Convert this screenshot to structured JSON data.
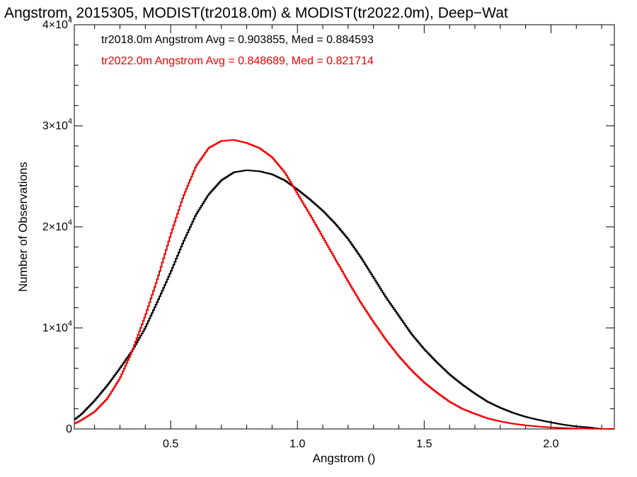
{
  "chart_data": {
    "type": "line",
    "title": "Angstrom, 2015305, MODIST(tr2018.0m) & MODIST(tr2022.0m), Deep−Wat",
    "xlabel": "Angstrom ()",
    "ylabel": "Number of Observations",
    "xlim": [
      0.12,
      2.25
    ],
    "ylim": [
      0,
      40000
    ],
    "grid": false,
    "x_ticks": [
      {
        "value": 0.5,
        "label": "0.5"
      },
      {
        "value": 1.0,
        "label": "1.0"
      },
      {
        "value": 1.5,
        "label": "1.5"
      },
      {
        "value": 2.0,
        "label": "2.0"
      }
    ],
    "y_ticks": [
      {
        "value": 0,
        "base": "0",
        "exp": ""
      },
      {
        "value": 10000,
        "base": "1×10",
        "exp": "4"
      },
      {
        "value": 20000,
        "base": "2×10",
        "exp": "4"
      },
      {
        "value": 30000,
        "base": "3×10",
        "exp": "4"
      },
      {
        "value": 40000,
        "base": "4×10",
        "exp": "4"
      }
    ],
    "annotations": [
      {
        "text": "tr2018.0m Angstrom Avg = 0.903855, Med = 0.884593",
        "color": "#000000"
      },
      {
        "text": "tr2022.0m Angstrom Avg = 0.848689, Med = 0.821714",
        "color": "#ee0000"
      }
    ],
    "series": [
      {
        "color": "#000000",
        "points": [
          [
            0.12,
            900
          ],
          [
            0.15,
            1500
          ],
          [
            0.2,
            2800
          ],
          [
            0.25,
            4300
          ],
          [
            0.3,
            6000
          ],
          [
            0.35,
            7800
          ],
          [
            0.4,
            10000
          ],
          [
            0.45,
            12700
          ],
          [
            0.5,
            15500
          ],
          [
            0.55,
            18500
          ],
          [
            0.6,
            21200
          ],
          [
            0.65,
            23200
          ],
          [
            0.7,
            24600
          ],
          [
            0.75,
            25400
          ],
          [
            0.8,
            25600
          ],
          [
            0.85,
            25500
          ],
          [
            0.9,
            25200
          ],
          [
            0.95,
            24600
          ],
          [
            1.0,
            23700
          ],
          [
            1.05,
            22700
          ],
          [
            1.1,
            21600
          ],
          [
            1.15,
            20300
          ],
          [
            1.2,
            18800
          ],
          [
            1.25,
            17000
          ],
          [
            1.3,
            15000
          ],
          [
            1.35,
            13000
          ],
          [
            1.4,
            11200
          ],
          [
            1.45,
            9400
          ],
          [
            1.5,
            7900
          ],
          [
            1.55,
            6600
          ],
          [
            1.6,
            5400
          ],
          [
            1.65,
            4400
          ],
          [
            1.7,
            3500
          ],
          [
            1.75,
            2700
          ],
          [
            1.8,
            2100
          ],
          [
            1.85,
            1600
          ],
          [
            1.9,
            1200
          ],
          [
            1.95,
            900
          ],
          [
            2.0,
            650
          ],
          [
            2.05,
            420
          ],
          [
            2.1,
            250
          ],
          [
            2.15,
            150
          ],
          [
            2.2,
            0
          ]
        ]
      },
      {
        "color": "#ee0000",
        "points": [
          [
            0.12,
            500
          ],
          [
            0.15,
            900
          ],
          [
            0.2,
            1700
          ],
          [
            0.25,
            3000
          ],
          [
            0.3,
            5000
          ],
          [
            0.35,
            7800
          ],
          [
            0.4,
            11200
          ],
          [
            0.45,
            15000
          ],
          [
            0.5,
            19200
          ],
          [
            0.55,
            23000
          ],
          [
            0.6,
            26000
          ],
          [
            0.65,
            27800
          ],
          [
            0.7,
            28500
          ],
          [
            0.75,
            28600
          ],
          [
            0.8,
            28300
          ],
          [
            0.85,
            27800
          ],
          [
            0.9,
            26900
          ],
          [
            0.95,
            25400
          ],
          [
            1.0,
            23300
          ],
          [
            1.05,
            21200
          ],
          [
            1.1,
            19000
          ],
          [
            1.15,
            16800
          ],
          [
            1.2,
            14600
          ],
          [
            1.25,
            12500
          ],
          [
            1.3,
            10600
          ],
          [
            1.35,
            8800
          ],
          [
            1.4,
            7200
          ],
          [
            1.45,
            5800
          ],
          [
            1.5,
            4600
          ],
          [
            1.55,
            3600
          ],
          [
            1.6,
            2700
          ],
          [
            1.65,
            2000
          ],
          [
            1.7,
            1500
          ],
          [
            1.75,
            1050
          ],
          [
            1.8,
            750
          ],
          [
            1.85,
            520
          ],
          [
            1.9,
            360
          ],
          [
            1.95,
            240
          ],
          [
            2.0,
            150
          ],
          [
            2.05,
            90
          ],
          [
            2.1,
            50
          ],
          [
            2.15,
            25
          ],
          [
            2.25,
            0
          ]
        ]
      }
    ]
  }
}
